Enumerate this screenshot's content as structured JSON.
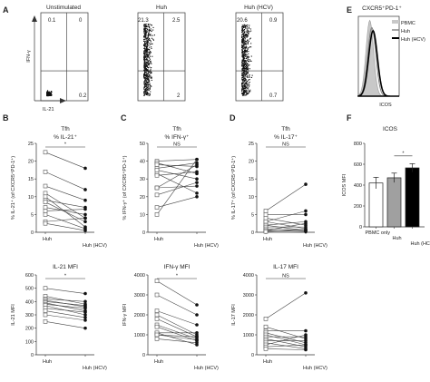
{
  "panels": {
    "A": {
      "label": "A",
      "xlabel": "IL-21",
      "ylabel": "IFN-γ",
      "plots": [
        {
          "title": "Unstimulated",
          "quadrants": {
            "ul": "0.1",
            "ur": "0",
            "ll": "",
            "lr": "0.2"
          }
        },
        {
          "title": "Huh",
          "quadrants": {
            "ul": "21.3",
            "ur": "2.5",
            "ll": "",
            "lr": "2"
          }
        },
        {
          "title": "Huh (HCV)",
          "quadrants": {
            "ul": "20.6",
            "ur": "0.9",
            "ll": "",
            "lr": "0.7"
          }
        }
      ]
    },
    "E": {
      "label": "E",
      "title": "CXCR5⁺PD-1⁺",
      "xlabel": "ICOS",
      "legend": [
        "PBMC",
        "Huh",
        "Huh (HCV)"
      ],
      "colors": {
        "PBMC": "#c8c8c8",
        "Huh": "#808080",
        "Huh (HCV)": "#000000"
      }
    },
    "F": {
      "label": "F",
      "title": "ICOS",
      "ylabel": "ICOS MFI"
    },
    "B": {
      "label": "B"
    },
    "C": {
      "label": "C"
    },
    "D": {
      "label": "D"
    }
  },
  "chart_data": [
    {
      "id": "B-top",
      "type": "line",
      "title": "Tfh",
      "subtitle": "% IL-21⁺",
      "ylabel": "% IL-21⁺ (of CXCR5⁺PD-1⁺)",
      "categories": [
        "Huh",
        "Huh (HCV)"
      ],
      "ylim": [
        0,
        25
      ],
      "yticks": [
        0,
        5,
        10,
        15,
        20,
        25
      ],
      "significance": "*",
      "pairs": [
        [
          22.5,
          18
        ],
        [
          17,
          12
        ],
        [
          13,
          9
        ],
        [
          11,
          4
        ],
        [
          10,
          1.5
        ],
        [
          9,
          7
        ],
        [
          8.5,
          3
        ],
        [
          7,
          5
        ],
        [
          6,
          6.5
        ],
        [
          5,
          1
        ],
        [
          3,
          4
        ],
        [
          2.5,
          0.5
        ]
      ]
    },
    {
      "id": "C-top",
      "type": "line",
      "title": "Tfh",
      "subtitle": "% IFN-γ⁺",
      "ylabel": "% IFN-γ⁺ (of CXCR5⁺PD-1⁺)",
      "categories": [
        "Huh",
        "Huh (HCV)"
      ],
      "ylim": [
        0,
        50
      ],
      "yticks": [
        0,
        10,
        20,
        30,
        40,
        50
      ],
      "significance": "NS",
      "pairs": [
        [
          40,
          41
        ],
        [
          39,
          33
        ],
        [
          38,
          37
        ],
        [
          36,
          39
        ],
        [
          35,
          30
        ],
        [
          33,
          22
        ],
        [
          32,
          34
        ],
        [
          25,
          38
        ],
        [
          25,
          26
        ],
        [
          21,
          28
        ],
        [
          14,
          20
        ],
        [
          10,
          41
        ]
      ]
    },
    {
      "id": "D-top",
      "type": "line",
      "title": "Tfh",
      "subtitle": "% IL-17⁺",
      "ylabel": "% IL-17⁺ (of CXCR5⁺PD-1⁺)",
      "categories": [
        "Huh",
        "Huh (HCV)"
      ],
      "ylim": [
        0,
        25
      ],
      "yticks": [
        0,
        5,
        10,
        15,
        20,
        25
      ],
      "significance": "NS",
      "pairs": [
        [
          6,
          13.5
        ],
        [
          5,
          5
        ],
        [
          4,
          2
        ],
        [
          3,
          1
        ],
        [
          3,
          6
        ],
        [
          2,
          0.5
        ],
        [
          2,
          3
        ],
        [
          1.5,
          1.5
        ],
        [
          1,
          0.5
        ],
        [
          0.5,
          0.2
        ],
        [
          0.5,
          2.5
        ],
        [
          0.2,
          0.8
        ]
      ]
    },
    {
      "id": "F",
      "type": "bar",
      "title": "ICOS",
      "ylabel": "ICOS MFI",
      "categories": [
        "PBMC only",
        "Huh",
        "Huh (HCV)"
      ],
      "values": [
        420,
        470,
        565
      ],
      "errors": [
        55,
        45,
        40
      ],
      "colors": [
        "#ffffff",
        "#a0a0a0",
        "#000000"
      ],
      "ylim": [
        0,
        800
      ],
      "yticks": [
        0,
        200,
        400,
        600,
        800
      ],
      "significance": "*"
    },
    {
      "id": "B-bottom",
      "type": "line",
      "title": "IL-21 MFI",
      "ylabel": "IL-21 MFI",
      "categories": [
        "Huh",
        "Huh (HCV)"
      ],
      "ylim": [
        0,
        600
      ],
      "yticks": [
        0,
        100,
        200,
        300,
        400,
        500,
        600
      ],
      "significance": "*",
      "pairs": [
        [
          500,
          460
        ],
        [
          440,
          380
        ],
        [
          420,
          400
        ],
        [
          410,
          360
        ],
        [
          400,
          370
        ],
        [
          390,
          330
        ],
        [
          380,
          350
        ],
        [
          370,
          300
        ],
        [
          350,
          320
        ],
        [
          330,
          280
        ],
        [
          300,
          260
        ],
        [
          250,
          200
        ]
      ]
    },
    {
      "id": "C-bottom",
      "type": "line",
      "title": "IFN-γ MFI",
      "ylabel": "IFN-γ MFI",
      "categories": [
        "Huh",
        "Huh (HCV)"
      ],
      "ylim": [
        0,
        4000
      ],
      "yticks": [
        0,
        1000,
        2000,
        3000,
        4000
      ],
      "significance": "*",
      "pairs": [
        [
          3700,
          2500
        ],
        [
          3000,
          2000
        ],
        [
          2200,
          1500
        ],
        [
          2000,
          1000
        ],
        [
          1800,
          900
        ],
        [
          1500,
          800
        ],
        [
          1400,
          700
        ],
        [
          1100,
          1100
        ],
        [
          1000,
          750
        ],
        [
          800,
          600
        ],
        [
          1100,
          500
        ],
        [
          1000,
          900
        ]
      ]
    },
    {
      "id": "D-bottom",
      "type": "line",
      "title": "IL-17 MFI",
      "ylabel": "IL-17 MFI",
      "categories": [
        "Huh",
        "Huh (HCV)"
      ],
      "ylim": [
        0,
        4000
      ],
      "yticks": [
        0,
        1000,
        2000,
        3000,
        4000
      ],
      "significance": "NS",
      "pairs": [
        [
          1800,
          3100
        ],
        [
          1400,
          800
        ],
        [
          1200,
          1200
        ],
        [
          1100,
          600
        ],
        [
          1000,
          500
        ],
        [
          900,
          900
        ],
        [
          800,
          400
        ],
        [
          700,
          700
        ],
        [
          600,
          300
        ],
        [
          500,
          1000
        ],
        [
          400,
          500
        ],
        [
          300,
          250
        ]
      ]
    }
  ]
}
